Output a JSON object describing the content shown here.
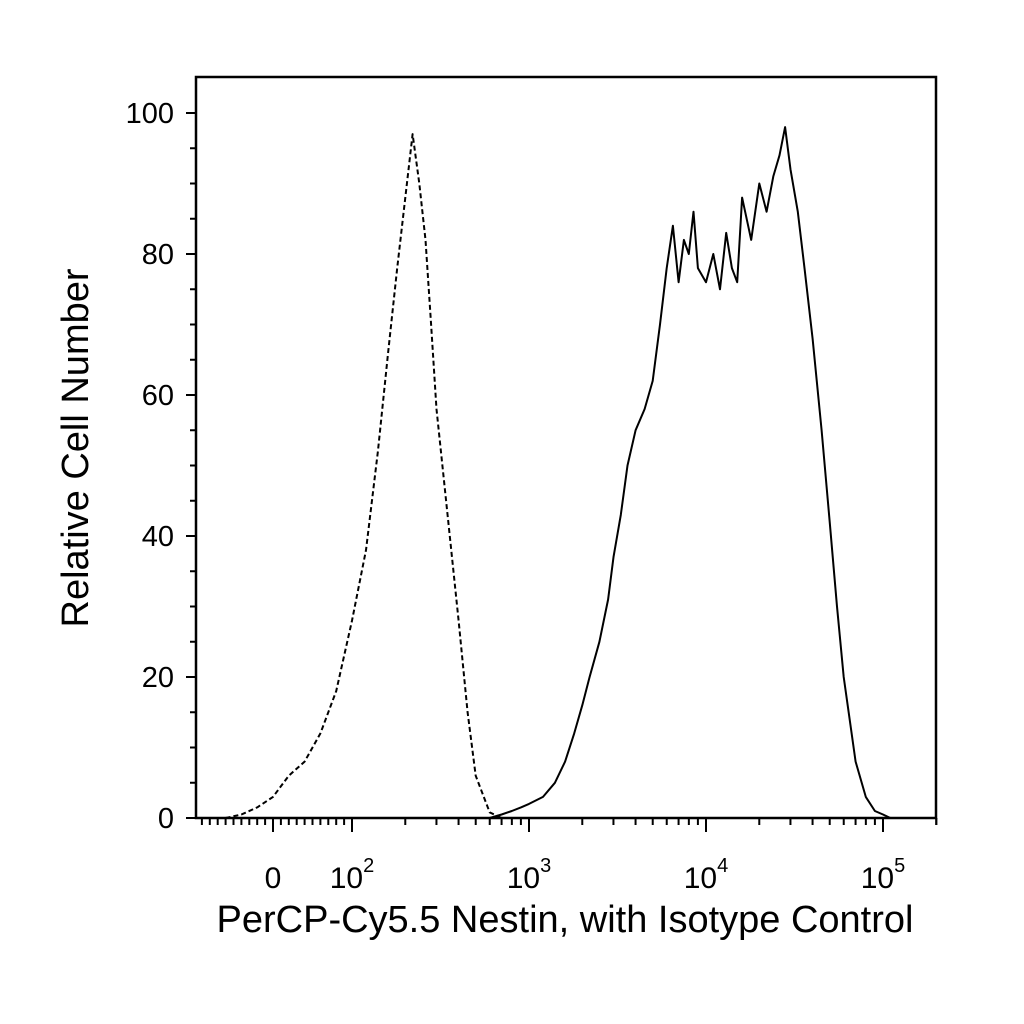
{
  "chart_data": {
    "type": "line",
    "title": "",
    "xlabel": "PerCP-Cy5.5 Nestin, with Isotype Control",
    "ylabel": "Relative Cell Number",
    "x_scale": "biexponential (log above 10^2)",
    "xlim": [
      -80,
      230000
    ],
    "ylim": [
      0,
      100
    ],
    "y_ticks": [
      {
        "value": 0,
        "label": "0"
      },
      {
        "value": 20,
        "label": "20"
      },
      {
        "value": 40,
        "label": "40"
      },
      {
        "value": 60,
        "label": "60"
      },
      {
        "value": 80,
        "label": "80"
      },
      {
        "value": 100,
        "label": "100"
      }
    ],
    "x_ticks": [
      {
        "value": 0,
        "base": "0",
        "exp": ""
      },
      {
        "value": 100,
        "base": "10",
        "exp": "2"
      },
      {
        "value": 1000,
        "base": "10",
        "exp": "3"
      },
      {
        "value": 10000,
        "base": "10",
        "exp": "4"
      },
      {
        "value": 100000,
        "base": "10",
        "exp": "5"
      }
    ],
    "grid": false,
    "legend": "none",
    "series": [
      {
        "style": "dashed",
        "color": "#000000",
        "x": [
          -60,
          -40,
          -20,
          0,
          20,
          40,
          60,
          80,
          100,
          120,
          140,
          160,
          180,
          200,
          220,
          240,
          260,
          280,
          300,
          350,
          400,
          450,
          500,
          600,
          700,
          800,
          1000,
          3000,
          10000,
          100000,
          200000
        ],
        "y": [
          0,
          0.5,
          1.5,
          3,
          6,
          8,
          12,
          18,
          28,
          38,
          52,
          66,
          78,
          88,
          97,
          90,
          82,
          70,
          58,
          42,
          28,
          15,
          6,
          0.8,
          0,
          0,
          0,
          0,
          0,
          0,
          0
        ]
      },
      {
        "style": "solid",
        "color": "#000000",
        "x": [
          600,
          700,
          800,
          900,
          1000,
          1200,
          1400,
          1600,
          1800,
          2000,
          2200,
          2500,
          2800,
          3000,
          3300,
          3600,
          4000,
          4500,
          5000,
          5500,
          6000,
          6500,
          7000,
          7500,
          8000,
          8500,
          9000,
          10000,
          11000,
          12000,
          13000,
          14000,
          15000,
          16000,
          18000,
          20000,
          22000,
          24000,
          26000,
          28000,
          30000,
          33000,
          36000,
          40000,
          45000,
          50000,
          55000,
          60000,
          70000,
          80000,
          90000,
          100000,
          110000,
          120000,
          130000,
          150000,
          200000
        ],
        "y": [
          0,
          0.5,
          1,
          1.5,
          2,
          3,
          5,
          8,
          12,
          16,
          20,
          25,
          31,
          37,
          43,
          50,
          55,
          58,
          62,
          70,
          78,
          84,
          76,
          82,
          80,
          86,
          78,
          76,
          80,
          75,
          83,
          78,
          76,
          88,
          82,
          90,
          86,
          91,
          94,
          98,
          92,
          86,
          78,
          68,
          55,
          42,
          30,
          20,
          8,
          3,
          1,
          0.5,
          0,
          0,
          0,
          0,
          0
        ]
      }
    ]
  }
}
